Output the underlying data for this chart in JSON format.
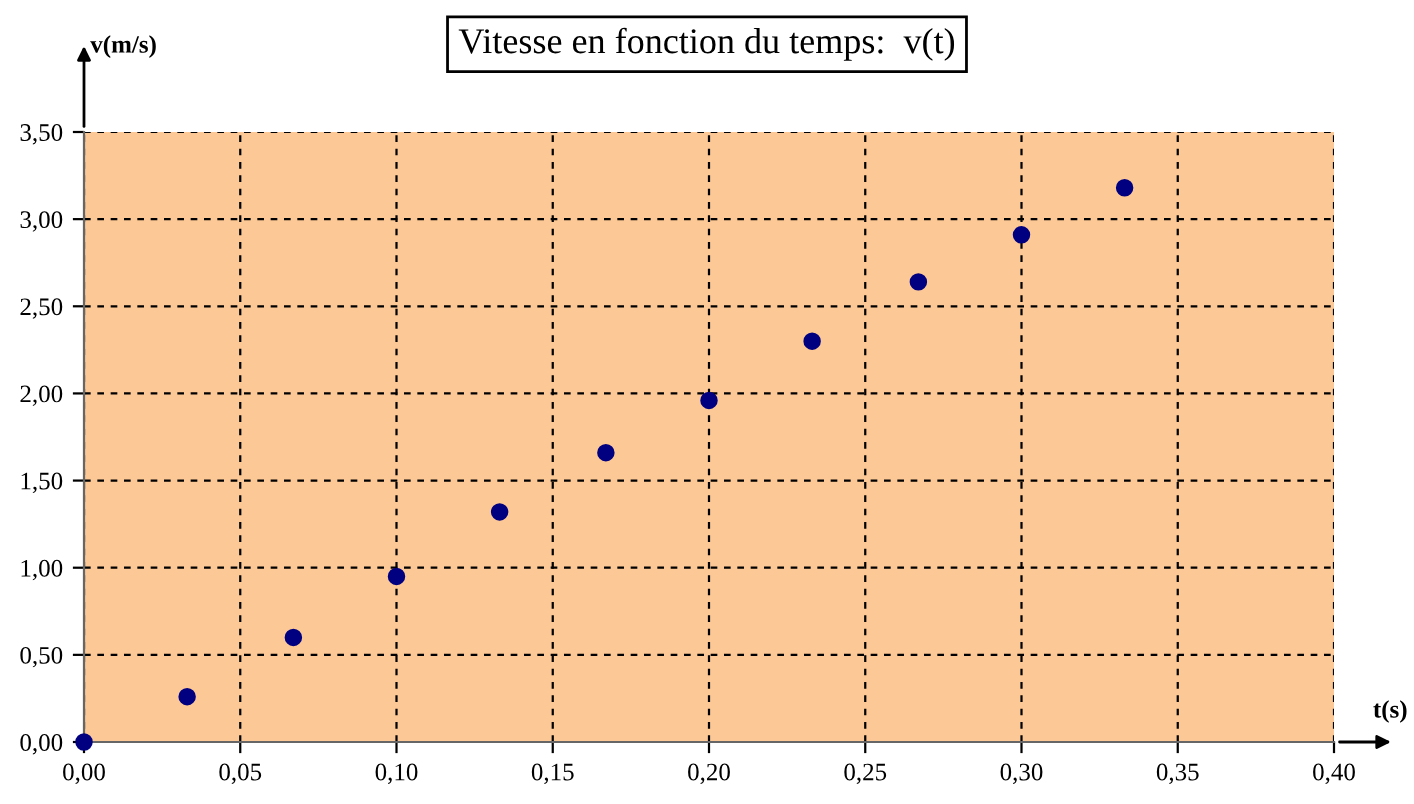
{
  "chart_data": {
    "type": "scatter",
    "title": "Vitesse en fonction du temps:  v(t)",
    "xlabel": "t(s)",
    "ylabel": "v(m/s)",
    "x": [
      0,
      0.033,
      0.067,
      0.1,
      0.133,
      0.167,
      0.2,
      0.233,
      0.267,
      0.3,
      0.333
    ],
    "series": [
      {
        "color": "#000080",
        "values": [
          0,
          0.26,
          0.6,
          0.95,
          1.32,
          1.66,
          1.96,
          2.3,
          2.64,
          2.91,
          3.18
        ]
      }
    ],
    "xlim": [
      0,
      0.4
    ],
    "ylim": [
      0,
      3.5
    ],
    "xticks": [
      {
        "value": 0,
        "label": "0,00"
      },
      {
        "value": 0.05,
        "label": "0,05"
      },
      {
        "value": 0.1,
        "label": "0,10"
      },
      {
        "value": 0.15,
        "label": "0,15"
      },
      {
        "value": 0.2,
        "label": "0,20"
      },
      {
        "value": 0.25,
        "label": "0,25"
      },
      {
        "value": 0.3,
        "label": "0,30"
      },
      {
        "value": 0.35,
        "label": "0,35"
      },
      {
        "value": 0.4,
        "label": "0,40"
      }
    ],
    "yticks": [
      {
        "value": 0,
        "label": "0,00"
      },
      {
        "value": 0.5,
        "label": "0,50"
      },
      {
        "value": 1,
        "label": "1,00"
      },
      {
        "value": 1.5,
        "label": "1,50"
      },
      {
        "value": 2,
        "label": "2,00"
      },
      {
        "value": 2.5,
        "label": "2,50"
      },
      {
        "value": 3,
        "label": "3,00"
      },
      {
        "value": 3.5,
        "label": "3,50"
      }
    ],
    "grid": true,
    "marker": "circle",
    "legend": false
  }
}
